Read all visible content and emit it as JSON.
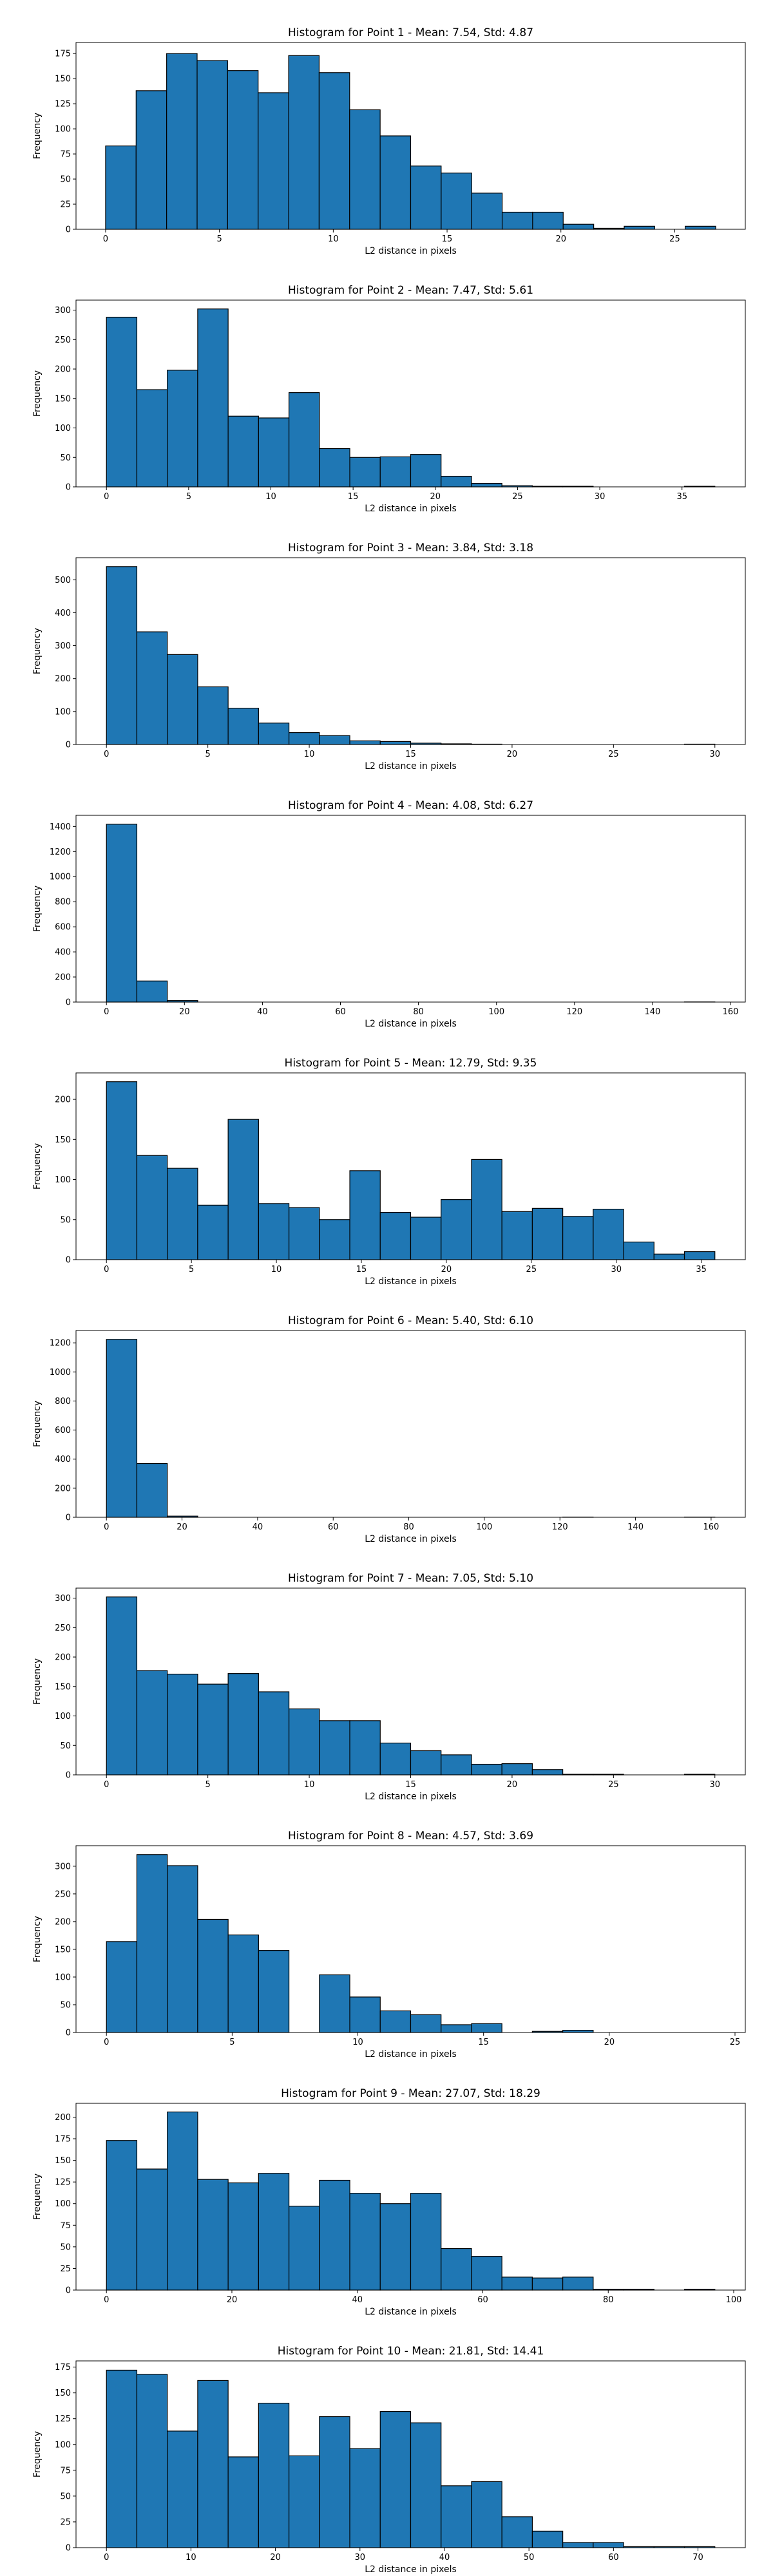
{
  "chart_data": [
    {
      "type": "bar",
      "title": "Histogram for Point 1 - Mean: 7.54, Std: 4.87",
      "xlabel": "L2 distance in pixels",
      "ylabel": "Frequency",
      "bin_start": 0,
      "bin_width": 1.34,
      "values": [
        83,
        138,
        175,
        168,
        158,
        136,
        173,
        156,
        119,
        93,
        63,
        56,
        36,
        17,
        17,
        5,
        1,
        3,
        0,
        3
      ],
      "xlim": [
        -1.3,
        28.1
      ],
      "ylim": [
        0,
        186
      ],
      "xticks": [
        0,
        5,
        10,
        15,
        20,
        25
      ],
      "yticks": [
        0,
        25,
        50,
        75,
        100,
        125,
        150,
        175
      ],
      "grid": false
    },
    {
      "type": "bar",
      "title": "Histogram for Point 2 - Mean: 7.47, Std: 5.61",
      "xlabel": "L2 distance in pixels",
      "ylabel": "Frequency",
      "bin_start": 0,
      "bin_width": 1.85,
      "values": [
        288,
        165,
        198,
        302,
        120,
        117,
        160,
        65,
        50,
        51,
        55,
        18,
        6,
        2,
        1,
        1,
        0,
        0,
        0,
        1
      ],
      "xlim": [
        -1.85,
        38.85
      ],
      "ylim": [
        0,
        317
      ],
      "xticks": [
        0,
        5,
        10,
        15,
        20,
        25,
        30,
        35
      ],
      "yticks": [
        0,
        50,
        100,
        150,
        200,
        250,
        300
      ],
      "grid": false
    },
    {
      "type": "bar",
      "title": "Histogram for Point 3 - Mean: 3.84, Std: 3.18",
      "xlabel": "L2 distance in pixels",
      "ylabel": "Frequency",
      "bin_start": 0,
      "bin_width": 1.5,
      "values": [
        540,
        342,
        273,
        175,
        110,
        65,
        36,
        27,
        11,
        9,
        4,
        2,
        1,
        0,
        0,
        0,
        0,
        0,
        0,
        1
      ],
      "xlim": [
        -1.5,
        31.5
      ],
      "ylim": [
        0,
        567
      ],
      "xticks": [
        0,
        5,
        10,
        15,
        20,
        25,
        30
      ],
      "yticks": [
        0,
        100,
        200,
        300,
        400,
        500
      ],
      "grid": false
    },
    {
      "type": "bar",
      "title": "Histogram for Point 4 - Mean: 4.08, Std: 6.27",
      "xlabel": "L2 distance in pixels",
      "ylabel": "Frequency",
      "bin_start": 0,
      "bin_width": 7.8,
      "values": [
        1418,
        168,
        12,
        0,
        0,
        0,
        0,
        0,
        0,
        0,
        0,
        0,
        0,
        0,
        0,
        0,
        0,
        0,
        0,
        1
      ],
      "xlim": [
        -7.8,
        163.8
      ],
      "ylim": [
        0,
        1489
      ],
      "xticks": [
        0,
        20,
        40,
        60,
        80,
        100,
        120,
        140,
        160
      ],
      "yticks": [
        0,
        200,
        400,
        600,
        800,
        1000,
        1200,
        1400
      ],
      "grid": false
    },
    {
      "type": "bar",
      "title": "Histogram for Point 5 - Mean: 12.79, Std: 9.35",
      "xlabel": "L2 distance in pixels",
      "ylabel": "Frequency",
      "bin_start": 0,
      "bin_width": 1.79,
      "values": [
        222,
        130,
        114,
        68,
        175,
        70,
        65,
        50,
        111,
        59,
        53,
        75,
        125,
        60,
        64,
        54,
        63,
        22,
        7,
        10
      ],
      "xlim": [
        -1.79,
        37.59
      ],
      "ylim": [
        0,
        233
      ],
      "xticks": [
        0,
        5,
        10,
        15,
        20,
        25,
        30,
        35
      ],
      "yticks": [
        0,
        50,
        100,
        150,
        200
      ],
      "grid": false
    },
    {
      "type": "bar",
      "title": "Histogram for Point 6 - Mean: 5.40, Std: 6.10",
      "xlabel": "L2 distance in pixels",
      "ylabel": "Frequency",
      "bin_start": 0,
      "bin_width": 8.05,
      "values": [
        1224,
        370,
        8,
        0,
        0,
        0,
        0,
        0,
        0,
        0,
        0,
        0,
        0,
        0,
        0,
        1,
        0,
        0,
        0,
        1
      ],
      "xlim": [
        -8.05,
        169.05
      ],
      "ylim": [
        0,
        1285
      ],
      "xticks": [
        0,
        20,
        40,
        60,
        80,
        100,
        120,
        140,
        160
      ],
      "yticks": [
        0,
        200,
        400,
        600,
        800,
        1000,
        1200
      ],
      "grid": false
    },
    {
      "type": "bar",
      "title": "Histogram for Point 7 - Mean: 7.05, Std: 5.10",
      "xlabel": "L2 distance in pixels",
      "ylabel": "Frequency",
      "bin_start": 0,
      "bin_width": 1.5,
      "values": [
        302,
        177,
        171,
        154,
        172,
        141,
        112,
        92,
        92,
        54,
        41,
        34,
        18,
        19,
        9,
        1,
        1,
        0,
        0,
        1
      ],
      "xlim": [
        -1.5,
        31.5
      ],
      "ylim": [
        0,
        317
      ],
      "xticks": [
        0,
        5,
        10,
        15,
        20,
        25,
        30
      ],
      "yticks": [
        0,
        50,
        100,
        150,
        200,
        250,
        300
      ],
      "grid": false
    },
    {
      "type": "bar",
      "title": "Histogram for Point 8 - Mean: 4.57, Std: 3.69",
      "xlabel": "L2 distance in pixels",
      "ylabel": "Frequency",
      "bin_start": 0,
      "bin_width": 1.21,
      "values": [
        164,
        321,
        301,
        204,
        176,
        148,
        0,
        104,
        64,
        39,
        32,
        14,
        16,
        0,
        2,
        4,
        0,
        0,
        0,
        0
      ],
      "xlim": [
        -1.21,
        25.41
      ],
      "ylim": [
        0,
        337
      ],
      "xticks": [
        0,
        5,
        10,
        15,
        20,
        25
      ],
      "yticks": [
        0,
        50,
        100,
        150,
        200,
        250,
        300
      ],
      "grid": false
    },
    {
      "type": "bar",
      "title": "Histogram for Point 9 - Mean: 27.07, Std: 18.29",
      "xlabel": "L2 distance in pixels",
      "ylabel": "Frequency",
      "bin_start": 0,
      "bin_width": 4.85,
      "values": [
        173,
        140,
        206,
        128,
        124,
        135,
        97,
        127,
        112,
        100,
        112,
        48,
        39,
        15,
        14,
        15,
        1,
        1,
        0,
        1
      ],
      "xlim": [
        -4.85,
        101.85
      ],
      "ylim": [
        0,
        216
      ],
      "xticks": [
        0,
        20,
        40,
        60,
        80,
        100
      ],
      "yticks": [
        0,
        25,
        50,
        75,
        100,
        125,
        150,
        175,
        200
      ],
      "grid": false
    },
    {
      "type": "bar",
      "title": "Histogram for Point 10 - Mean: 21.81, Std: 14.41",
      "xlabel": "L2 distance in pixels",
      "ylabel": "Frequency",
      "bin_start": 0,
      "bin_width": 3.6,
      "values": [
        172,
        168,
        113,
        162,
        88,
        140,
        89,
        127,
        96,
        132,
        121,
        60,
        64,
        30,
        16,
        5,
        5,
        1,
        1,
        1
      ],
      "xlim": [
        -3.6,
        75.6
      ],
      "ylim": [
        0,
        181
      ],
      "xticks": [
        0,
        10,
        20,
        30,
        40,
        50,
        60,
        70
      ],
      "yticks": [
        0,
        25,
        50,
        75,
        100,
        125,
        150,
        175
      ],
      "grid": false
    }
  ]
}
